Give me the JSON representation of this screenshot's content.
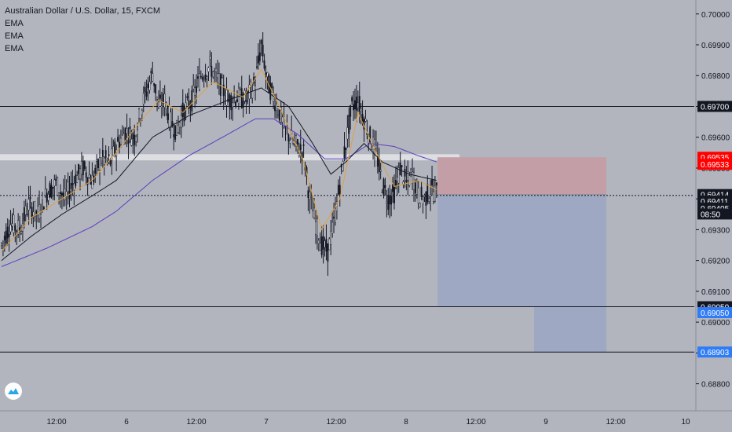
{
  "legend": {
    "symbol": "Australian Dollar / U.S. Dollar, 15, FXCM",
    "indicators": [
      "EMA",
      "EMA",
      "EMA"
    ]
  },
  "colors": {
    "background": "#b2b5be",
    "candle": "#131722",
    "ema_fast": "#e0a040",
    "ema_mid": "#131722",
    "ema_slow": "#5b3fbf",
    "stop_zone": "#c49ea6",
    "target_zone": "#9ea8c2",
    "badge_red": "#ff0000",
    "badge_blue": "#2f7cf6",
    "badge_black": "#131722"
  },
  "logo": {
    "icon": "tradingview-logo-icon"
  },
  "chart_data": {
    "type": "candlestick",
    "title": "Australian Dollar / U.S. Dollar, 15, FXCM",
    "ylim": [
      0.6872,
      0.7003
    ],
    "y_ticks": [
      "0.70000",
      "0.69900",
      "0.69800",
      "0.69700",
      "0.69600",
      "0.69500",
      "0.69400",
      "0.69300",
      "0.69200",
      "0.69100",
      "0.69000",
      "0.68900",
      "0.68800"
    ],
    "x_ticks": [
      "12:00",
      "6",
      "12:00",
      "7",
      "12:00",
      "8",
      "12:00",
      "9",
      "12:00",
      "10"
    ],
    "price_path": [
      [
        0,
        0.6925
      ],
      [
        6,
        0.6932
      ],
      [
        12,
        0.693
      ],
      [
        18,
        0.6938
      ],
      [
        24,
        0.6935
      ],
      [
        30,
        0.6942
      ],
      [
        36,
        0.6945
      ],
      [
        42,
        0.694
      ],
      [
        48,
        0.6946
      ],
      [
        54,
        0.695
      ],
      [
        60,
        0.6946
      ],
      [
        66,
        0.6953
      ],
      [
        72,
        0.6952
      ],
      [
        76,
        0.6957
      ],
      [
        82,
        0.6962
      ],
      [
        88,
        0.696
      ],
      [
        94,
        0.6972
      ],
      [
        100,
        0.6981
      ],
      [
        104,
        0.697
      ],
      [
        108,
        0.6972
      ],
      [
        112,
        0.6965
      ],
      [
        116,
        0.6962
      ],
      [
        120,
        0.6968
      ],
      [
        126,
        0.6972
      ],
      [
        132,
        0.698
      ],
      [
        138,
        0.6983
      ],
      [
        144,
        0.6978
      ],
      [
        150,
        0.6972
      ],
      [
        156,
        0.6973
      ],
      [
        162,
        0.6972
      ],
      [
        168,
        0.6978
      ],
      [
        172,
        0.699
      ],
      [
        176,
        0.6978
      ],
      [
        180,
        0.6973
      ],
      [
        184,
        0.6968
      ],
      [
        188,
        0.6962
      ],
      [
        194,
        0.6958
      ],
      [
        200,
        0.6955
      ],
      [
        204,
        0.694
      ],
      [
        208,
        0.6932
      ],
      [
        212,
        0.6925
      ],
      [
        216,
        0.6923
      ],
      [
        220,
        0.6932
      ],
      [
        224,
        0.6945
      ],
      [
        228,
        0.6958
      ],
      [
        232,
        0.697
      ],
      [
        236,
        0.6972
      ],
      [
        240,
        0.6966
      ],
      [
        244,
        0.696
      ],
      [
        248,
        0.6955
      ],
      [
        252,
        0.6945
      ],
      [
        256,
        0.694
      ],
      [
        260,
        0.6942
      ],
      [
        264,
        0.695
      ],
      [
        268,
        0.6945
      ],
      [
        272,
        0.6948
      ],
      [
        276,
        0.6941
      ],
      [
        280,
        0.694
      ],
      [
        284,
        0.6943
      ],
      [
        288,
        0.6942
      ]
    ],
    "ema_fast": [
      [
        0,
        0.6923
      ],
      [
        20,
        0.6934
      ],
      [
        40,
        0.694
      ],
      [
        60,
        0.6946
      ],
      [
        76,
        0.6955
      ],
      [
        90,
        0.6964
      ],
      [
        104,
        0.6972
      ],
      [
        120,
        0.6968
      ],
      [
        140,
        0.6978
      ],
      [
        160,
        0.6973
      ],
      [
        172,
        0.6982
      ],
      [
        184,
        0.697
      ],
      [
        200,
        0.6952
      ],
      [
        212,
        0.693
      ],
      [
        224,
        0.694
      ],
      [
        236,
        0.6968
      ],
      [
        248,
        0.6955
      ],
      [
        260,
        0.6944
      ],
      [
        276,
        0.6946
      ],
      [
        288,
        0.6943
      ]
    ],
    "ema_mid": [
      [
        0,
        0.692
      ],
      [
        20,
        0.6928
      ],
      [
        40,
        0.6935
      ],
      [
        60,
        0.6941
      ],
      [
        76,
        0.6946
      ],
      [
        100,
        0.696
      ],
      [
        124,
        0.6967
      ],
      [
        150,
        0.6972
      ],
      [
        172,
        0.6976
      ],
      [
        190,
        0.697
      ],
      [
        206,
        0.6958
      ],
      [
        218,
        0.6948
      ],
      [
        228,
        0.6952
      ],
      [
        240,
        0.6958
      ],
      [
        252,
        0.6952
      ],
      [
        270,
        0.6948
      ],
      [
        288,
        0.6946
      ]
    ],
    "ema_slow": [
      [
        0,
        0.6918
      ],
      [
        30,
        0.6924
      ],
      [
        60,
        0.6931
      ],
      [
        76,
        0.6936
      ],
      [
        100,
        0.6946
      ],
      [
        124,
        0.6954
      ],
      [
        150,
        0.6961
      ],
      [
        168,
        0.6966
      ],
      [
        180,
        0.6966
      ],
      [
        196,
        0.6961
      ],
      [
        214,
        0.6953
      ],
      [
        228,
        0.6953
      ],
      [
        244,
        0.6958
      ],
      [
        260,
        0.6957
      ],
      [
        276,
        0.6954
      ],
      [
        288,
        0.6952
      ]
    ],
    "horizontal_lines": [
      0.697,
      0.6905,
      0.68903
    ],
    "dotted_line": 0.69411,
    "highlight_band": [
      0.69525,
      0.69545
    ],
    "position": {
      "entry": 0.69414,
      "stop": 0.69535,
      "target": 0.68903
    },
    "price_badges": [
      {
        "label": "0.69700",
        "value": 0.697,
        "style": "black"
      },
      {
        "label": "0.69535",
        "value": 0.69535,
        "style": "red"
      },
      {
        "label": "0.69533",
        "value": 0.69512,
        "style": "red"
      },
      {
        "label": "0.69414",
        "value": 0.69414,
        "style": "black"
      },
      {
        "label": "0.69411",
        "value": 0.69393,
        "style": "black"
      },
      {
        "label": "0.69405",
        "value": 0.6937,
        "style": "black"
      },
      {
        "label": "08:50",
        "value": 0.69351,
        "style": "black"
      },
      {
        "label": "0.69050",
        "value": 0.6905,
        "style": "black"
      },
      {
        "label": "0.69050",
        "value": 0.69031,
        "style": "blue"
      },
      {
        "label": "0.68903",
        "value": 0.68903,
        "style": "blue"
      }
    ]
  }
}
